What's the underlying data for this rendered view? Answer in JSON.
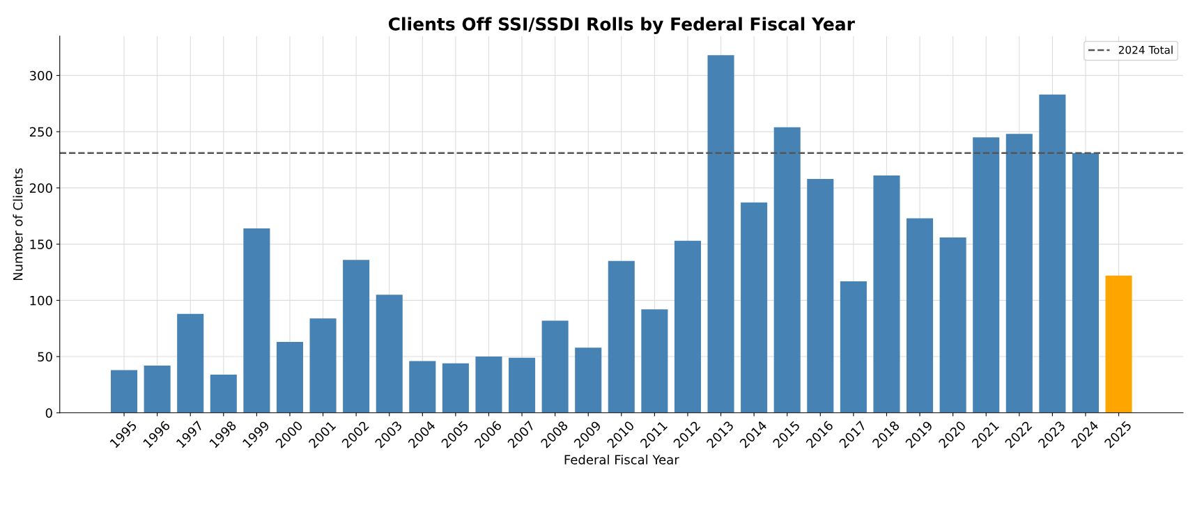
{
  "chart_data": {
    "type": "bar",
    "title": "Clients Off SSI/SSDI Rolls by Federal Fiscal Year",
    "xlabel": "Federal Fiscal Year",
    "ylabel": "Number of Clients",
    "categories": [
      "1995",
      "1996",
      "1997",
      "1998",
      "1999",
      "2000",
      "2001",
      "2002",
      "2003",
      "2004",
      "2005",
      "2006",
      "2007",
      "2008",
      "2009",
      "2010",
      "2011",
      "2012",
      "2013",
      "2014",
      "2015",
      "2016",
      "2017",
      "2018",
      "2019",
      "2020",
      "2021",
      "2022",
      "2023",
      "2024",
      "2025"
    ],
    "values": [
      38,
      42,
      88,
      34,
      164,
      63,
      84,
      136,
      105,
      46,
      44,
      50,
      49,
      82,
      58,
      135,
      92,
      153,
      318,
      187,
      254,
      208,
      117,
      211,
      173,
      156,
      245,
      248,
      283,
      231,
      122
    ],
    "colors": [
      "#4682b4",
      "#4682b4",
      "#4682b4",
      "#4682b4",
      "#4682b4",
      "#4682b4",
      "#4682b4",
      "#4682b4",
      "#4682b4",
      "#4682b4",
      "#4682b4",
      "#4682b4",
      "#4682b4",
      "#4682b4",
      "#4682b4",
      "#4682b4",
      "#4682b4",
      "#4682b4",
      "#4682b4",
      "#4682b4",
      "#4682b4",
      "#4682b4",
      "#4682b4",
      "#4682b4",
      "#4682b4",
      "#4682b4",
      "#4682b4",
      "#4682b4",
      "#4682b4",
      "#4682b4",
      "#ffa500"
    ],
    "ylim": [
      0,
      335
    ],
    "yticks": [
      0,
      50,
      100,
      150,
      200,
      250,
      300
    ],
    "ref_lines": [
      {
        "axis": "y",
        "value": 231,
        "label": "2024 Total",
        "color": "#555555",
        "line_style": "dashed"
      }
    ],
    "grid": true,
    "legend": "top right"
  }
}
